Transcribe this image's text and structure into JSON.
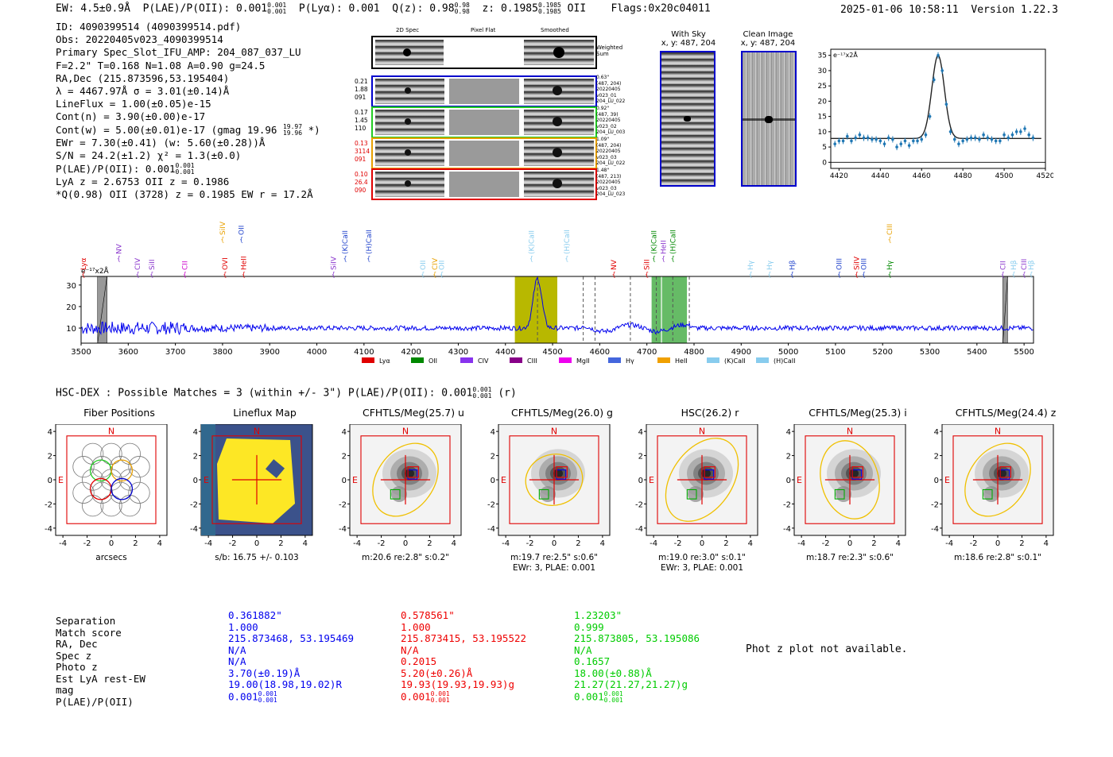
{
  "header": {
    "ew": "EW: 4.5±0.9Å",
    "plae_label": "P(LAE)/P(OII): 0.001",
    "plae_hi": "0.001",
    "plae_lo": "0.001",
    "plya": "P(Lyα): 0.001",
    "qz": "Q(z): 0.98",
    "qz_hi": "0.98",
    "qz_lo": "0.98",
    "z": "z: 0.1985",
    "z_hi": "0.1985",
    "z_lo": "0.1985",
    "oii": "OII",
    "flags": "Flags:0x20c04011",
    "timestamp": "2025-01-06 10:58:11",
    "version": "Version 1.22.3"
  },
  "info": {
    "id": "ID: 4090399514 (4090399514.pdf)",
    "obs": "Obs: 20220405v023_4090399514",
    "primary": "Primary Spec_Slot_IFU_AMP: 204_087_037_LU",
    "fit": "F=2.2\"  T=0.168  N=1.08  A=0.90  g=24.5",
    "radec": "RA,Dec (215.873596,53.195404)",
    "lambda": "λ = 4467.97Å   σ = 3.01(±0.14)Å",
    "lineflux": "LineFlux = 1.00(±0.05)e-15",
    "contn": "Cont(n) = 3.90(±0.00)e-17",
    "contw": "Cont(w) = 5.00(±0.01)e-17 (gmag 19.96",
    "contw_hi": "19.97",
    "contw_lo": "19.96",
    "contw_end": "*)",
    "ewr": "EWr = 7.30(±0.41) (w: 5.60(±0.28))Å",
    "sn": "S/N = 24.2(±1.2)  χ² = 1.3(±0.0)",
    "plae": "P(LAE)/P(OII): 0.001",
    "plae_hi": "0.001",
    "plae_lo": "0.001",
    "lya": "LyA z = 2.6753  OII z = 0.1986",
    "qline": "*Q(0.98) OII (3728) z = 0.1985  EW r = 17.2Å"
  },
  "spec_panel": {
    "col_2d": "2D Spec",
    "col_flat": "Pixel Flat",
    "col_smooth": "Smoothed",
    "weighted": "Weighted Sum",
    "rows": [
      {
        "left": [
          "0.21",
          "1.88",
          "091"
        ],
        "right": [
          "0.63\"",
          "(487, 204)",
          "20220405",
          "v023_01",
          "204_LU_022"
        ],
        "color": "#0000cc",
        "lcolor": "#000"
      },
      {
        "left": [
          "0.17",
          "1.45",
          "110"
        ],
        "right": [
          "0.92\"",
          "(487, 39)",
          "20220405",
          "v023_02",
          "204_LU_003"
        ],
        "color": "#22cc22",
        "lcolor": "#000"
      },
      {
        "left": [
          "0.13",
          "3114",
          "091"
        ],
        "right": [
          "1.09\"",
          "(487, 204)",
          "20220405",
          "v023_03",
          "204_LU_022"
        ],
        "color": "#e8a000",
        "lcolor": "#e00000"
      },
      {
        "left": [
          "0.10",
          "26.4",
          "090"
        ],
        "right": [
          "1.48\"",
          "(487, 213)",
          "20220405",
          "v023_03",
          "204_LU_023"
        ],
        "color": "#e00000",
        "lcolor": "#e00000"
      }
    ]
  },
  "withsky": {
    "title": "With Sky",
    "coords": "x, y: 487, 204"
  },
  "clean": {
    "title": "Clean Image",
    "coords": "x, y: 487, 204"
  },
  "line_fit": {
    "unit": "e⁻¹⁷x2Å",
    "chart_data": {
      "type": "line",
      "xlim": [
        4416,
        4520
      ],
      "ylim": [
        -2,
        37
      ],
      "xticks": [
        "4420",
        "4440",
        "4460",
        "4480",
        "4500",
        "4520"
      ],
      "yticks": [
        "0",
        "5",
        "10",
        "15",
        "20",
        "25",
        "30",
        "35"
      ],
      "continuum": 7.8,
      "peak": 35,
      "center": 4468,
      "sigma": 3.01,
      "points_x": [
        4418,
        4420,
        4422,
        4424,
        4426,
        4428,
        4430,
        4432,
        4434,
        4436,
        4438,
        4440,
        4442,
        4444,
        4446,
        4448,
        4450,
        4452,
        4454,
        4456,
        4458,
        4460,
        4462,
        4464,
        4466,
        4468,
        4470,
        4472,
        4474,
        4476,
        4478,
        4480,
        4482,
        4484,
        4486,
        4488,
        4490,
        4492,
        4494,
        4496,
        4498,
        4500,
        4502,
        4504,
        4506,
        4508,
        4510,
        4512,
        4514
      ],
      "points_y": [
        6,
        7,
        7,
        8.5,
        7,
        8,
        9,
        8,
        8,
        7.5,
        7.5,
        7,
        6,
        8,
        7.5,
        5,
        6,
        7,
        5.5,
        7,
        7,
        7.5,
        9,
        15,
        27,
        35,
        30,
        19,
        10,
        7.5,
        6,
        7,
        7.5,
        8,
        8,
        7.5,
        9,
        8,
        7.5,
        7,
        7,
        9,
        8,
        9,
        10,
        10,
        11,
        9,
        8
      ]
    }
  },
  "full_spectrum": {
    "unit": "e⁻¹⁷x2Å",
    "chart_data": {
      "type": "line",
      "xlim": [
        3500,
        5520
      ],
      "ylim": [
        3,
        34
      ],
      "xticks": [
        "3500",
        "3600",
        "3700",
        "3800",
        "3900",
        "4000",
        "4100",
        "4200",
        "4300",
        "4400",
        "4500",
        "4600",
        "4700",
        "4800",
        "4900",
        "5000",
        "5100",
        "5200",
        "5300",
        "5400",
        "5500"
      ],
      "yticks": [
        "10",
        "20",
        "30"
      ],
      "continuum": 10,
      "peak_center": 4468,
      "peak_height": 33,
      "bands": [
        [
          4420,
          4510
        ],
        [
          4710,
          4730
        ],
        [
          4732,
          4785
        ]
      ],
      "gray_bands": [
        [
          3535,
          3555
        ],
        [
          5455,
          5465
        ]
      ],
      "dashed": [
        4468,
        4565,
        4590,
        4665,
        4720,
        4755,
        4790
      ],
      "lines": [
        {
          "label": "Lyα",
          "x": 3505,
          "color": "#e00000",
          "row": 2
        },
        {
          "label": "NV",
          "x": 3580,
          "color": "#8833cc",
          "row": 1
        },
        {
          "label": "CIV",
          "x": 3620,
          "color": "#8833cc",
          "row": 2
        },
        {
          "label": "SiII",
          "x": 3650,
          "color": "#8833cc",
          "row": 2
        },
        {
          "label": "CII",
          "x": 3720,
          "color": "#cc00cc",
          "row": 2
        },
        {
          "label": "SiIV",
          "x": 3800,
          "color": "#e8a000",
          "row": 0
        },
        {
          "label": "OVI",
          "x": 3805,
          "color": "#e00000",
          "row": 2
        },
        {
          "label": "OII",
          "x": 3840,
          "color": "#2244cc",
          "row": 0
        },
        {
          "label": "HeII",
          "x": 3845,
          "color": "#e00000",
          "row": 2
        },
        {
          "label": "SiIV",
          "x": 4035,
          "color": "#8833cc",
          "row": 2
        },
        {
          "label": "(K)CaII",
          "x": 4060,
          "color": "#2244cc",
          "row": 1
        },
        {
          "label": "(H)CaII",
          "x": 4110,
          "color": "#2244cc",
          "row": 1
        },
        {
          "label": "OII",
          "x": 4225,
          "color": "#88ccee",
          "row": 2
        },
        {
          "label": "CIV",
          "x": 4250,
          "color": "#e8a000",
          "row": 2
        },
        {
          "label": "OII",
          "x": 4265,
          "color": "#88ccee",
          "row": 2
        },
        {
          "label": "(K)CaII",
          "x": 4455,
          "color": "#88ccee",
          "row": 1
        },
        {
          "label": "(H)CaII",
          "x": 4530,
          "color": "#88ccee",
          "row": 1
        },
        {
          "label": "NV",
          "x": 4630,
          "color": "#e00000",
          "row": 2
        },
        {
          "label": "SiII",
          "x": 4700,
          "color": "#e00000",
          "row": 2
        },
        {
          "label": "(K)CaII",
          "x": 4715,
          "color": "#008800",
          "row": 1
        },
        {
          "label": "HeII",
          "x": 4735,
          "color": "#8833cc",
          "row": 1
        },
        {
          "label": "(H)CaII",
          "x": 4755,
          "color": "#008800",
          "row": 1
        },
        {
          "label": "Hγ",
          "x": 4920,
          "color": "#88ccee",
          "row": 2
        },
        {
          "label": "Hγ",
          "x": 4960,
          "color": "#88ccee",
          "row": 2
        },
        {
          "label": "Hβ",
          "x": 5008,
          "color": "#2244cc",
          "row": 2
        },
        {
          "label": "OIII",
          "x": 5108,
          "color": "#2244cc",
          "row": 2
        },
        {
          "label": "SiIV",
          "x": 5145,
          "color": "#e00000",
          "row": 2
        },
        {
          "label": "OIII",
          "x": 5160,
          "color": "#2244cc",
          "row": 2
        },
        {
          "label": "CIII",
          "x": 5215,
          "color": "#e8a000",
          "row": 0
        },
        {
          "label": "Hγ",
          "x": 5215,
          "color": "#008800",
          "row": 2
        },
        {
          "label": "CII",
          "x": 5455,
          "color": "#8833cc",
          "row": 2
        },
        {
          "label": "Hβ",
          "x": 5478,
          "color": "#88ccee",
          "row": 2
        },
        {
          "label": "CIII",
          "x": 5500,
          "color": "#8833cc",
          "row": 2
        },
        {
          "label": "Hβ",
          "x": 5515,
          "color": "#88ccee",
          "row": 2
        }
      ],
      "legend": [
        {
          "label": "Lyα",
          "color": "#e00000"
        },
        {
          "label": "OII",
          "color": "#008800"
        },
        {
          "label": "CIV",
          "color": "#8833ee"
        },
        {
          "label": "CIII",
          "color": "#880088"
        },
        {
          "label": "MgII",
          "color": "#ee00ee"
        },
        {
          "label": "Hγ",
          "color": "#4466dd"
        },
        {
          "label": "HeII",
          "color": "#f0a000"
        },
        {
          "label": "(K)CaII",
          "color": "#88ccee"
        },
        {
          "label": "(H)CaII",
          "color": "#88ccee"
        }
      ]
    }
  },
  "hsc": {
    "title": "HSC-DEX : Possible Matches = 3 (within +/- 3\")  P(LAE)/P(OII): 0.001",
    "hi": "0.001",
    "lo": "0.001",
    "band": "(r)"
  },
  "cutouts": [
    {
      "title": "Fiber Positions",
      "caption1": "arcsecs",
      "caption2": "",
      "kind": "fiber"
    },
    {
      "title": "Lineflux Map",
      "caption1": "s/b: 16.75 +/- 0.103",
      "caption2": "",
      "kind": "lineflux"
    },
    {
      "title": "CFHTLS/Meg(25.7) u",
      "caption1": "m:20.6  re:2.8\"  s:0.2\"",
      "caption2": "",
      "kind": "img"
    },
    {
      "title": "CFHTLS/Meg(26.0) g",
      "caption1": "m:19.7  re:2.5\"  s:0.6\"",
      "caption2": "EWr: 3, PLAE: 0.001",
      "kind": "img"
    },
    {
      "title": "HSC(26.2) r",
      "caption1": "m:19.0  re:3.0\"  s:0.1\"",
      "caption2": "EWr: 3, PLAE: 0.001",
      "kind": "img"
    },
    {
      "title": "CFHTLS/Meg(25.3) i",
      "caption1": "m:18.7  re:2.3\"  s:0.6\"",
      "caption2": "",
      "kind": "img"
    },
    {
      "title": "CFHTLS/Meg(24.4) z",
      "caption1": "m:18.6  re:2.8\"  s:0.1\"",
      "caption2": "",
      "kind": "img"
    }
  ],
  "cutout_axes": {
    "ticks": [
      "-4",
      "-2",
      "0",
      "2",
      "4"
    ],
    "north": "N",
    "east": "E"
  },
  "matches": {
    "labels": [
      "Separation",
      "Match score",
      "RA, Dec",
      "Spec z",
      "Photo z",
      "Est LyA rest-EW",
      "mag",
      "P(LAE)/P(OII)"
    ],
    "columns": [
      {
        "color": "#0000ee",
        "values": [
          "0.361882\"",
          "1.000",
          "215.873468, 53.195469",
          "N/A",
          "N/A",
          "3.70(±0.19)Å",
          "19.00(18.98,19.02)R",
          "0.001"
        ],
        "hi": "0.001",
        "lo": "0.001"
      },
      {
        "color": "#ee0000",
        "values": [
          "0.578561\"",
          "1.000",
          "215.873415, 53.195522",
          "N/A",
          "0.2015",
          "5.20(±0.26)Å",
          "19.93(19.93,19.93)g",
          "0.001"
        ],
        "hi": "0.001",
        "lo": "0.001"
      },
      {
        "color": "#00cc00",
        "values": [
          "1.23203\"",
          "0.999",
          "215.873805, 53.195086",
          "N/A",
          "0.1657",
          "18.00(±0.88)Å",
          "21.27(21.27,21.27)g",
          "0.001"
        ],
        "hi": "0.001",
        "lo": "0.001"
      }
    ],
    "photz_msg": "Phot z plot not available."
  }
}
